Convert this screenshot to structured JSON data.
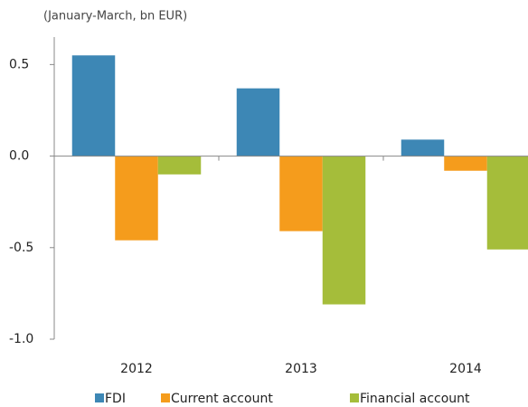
{
  "chart_data": {
    "type": "bar",
    "subtitle": "(January-March, bn EUR)",
    "categories": [
      "2012",
      "2013",
      "2014"
    ],
    "series": [
      {
        "name": "FDI",
        "color": "#3d87b5",
        "values": [
          0.55,
          0.37,
          0.09
        ]
      },
      {
        "name": "Current account",
        "color": "#f59c1c",
        "values": [
          -0.46,
          -0.41,
          -0.08
        ]
      },
      {
        "name": "Financial account",
        "color": "#a5bd3a",
        "values": [
          -0.1,
          -0.81,
          -0.51
        ]
      }
    ],
    "ylim": [
      -1.0,
      0.65
    ],
    "yticks": [
      {
        "value": -1.0,
        "label": "-1.0"
      },
      -0.5,
      {
        "value": 0.0,
        "label": "0.0"
      },
      0.5
    ],
    "grid": false
  }
}
